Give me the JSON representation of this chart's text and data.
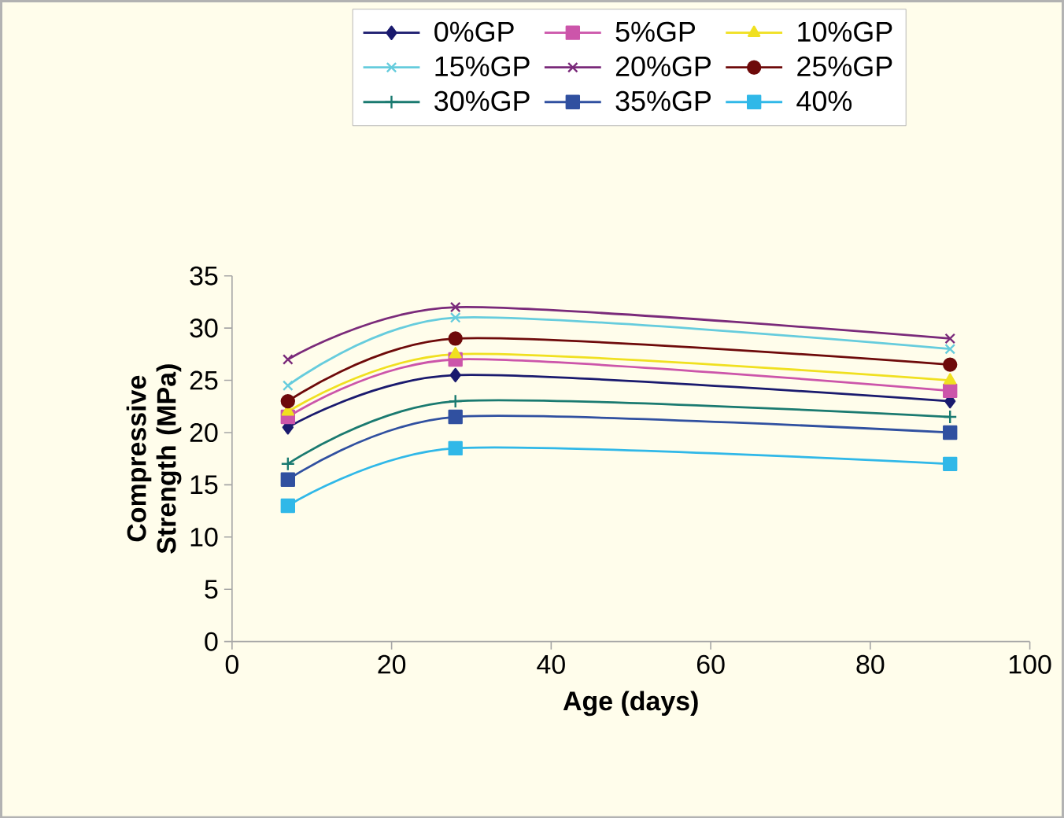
{
  "chart_data": {
    "type": "line",
    "xlabel": "Age (days)",
    "ylabel": "Compressive Strength (MPa)",
    "x": [
      7,
      28,
      90
    ],
    "xlim": [
      0,
      100
    ],
    "xticks": [
      0,
      20,
      40,
      60,
      80,
      100
    ],
    "ylim": [
      0,
      35
    ],
    "yticks": [
      0,
      5,
      10,
      15,
      20,
      25,
      30,
      35
    ],
    "legend": "top",
    "grid": false,
    "line_style": "solid",
    "series": [
      {
        "name": "0%GP",
        "color": "#1a1a6e",
        "marker": "diamond",
        "values": [
          20.5,
          25.5,
          23
        ]
      },
      {
        "name": "5%GP",
        "color": "#cc55aa",
        "marker": "square",
        "values": [
          21.5,
          27,
          24
        ]
      },
      {
        "name": "10%GP",
        "color": "#f0e020",
        "marker": "triangle",
        "values": [
          22,
          27.5,
          25
        ]
      },
      {
        "name": "15%GP",
        "color": "#66ccdd",
        "marker": "cross",
        "values": [
          24.5,
          31,
          28
        ]
      },
      {
        "name": "20%GP",
        "color": "#7a2a7a",
        "marker": "cross",
        "values": [
          27,
          32,
          29
        ]
      },
      {
        "name": "25%GP",
        "color": "#6e0a0a",
        "marker": "circle",
        "values": [
          23,
          29,
          26.5
        ]
      },
      {
        "name": "30%GP",
        "color": "#1a7a70",
        "marker": "plus",
        "values": [
          17,
          23,
          21.5
        ]
      },
      {
        "name": "35%GP",
        "color": "#3050a0",
        "marker": "square",
        "values": [
          15.5,
          21.5,
          20
        ]
      },
      {
        "name": "40%",
        "color": "#30b8e8",
        "marker": "square",
        "values": [
          13,
          18.5,
          17
        ]
      }
    ]
  }
}
